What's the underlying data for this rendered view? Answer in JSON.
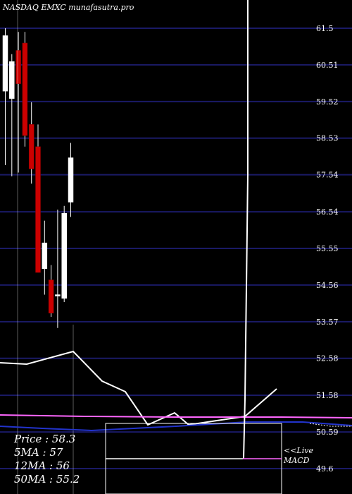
{
  "watermark": "NASDAQ EMXC munafasutra.pro",
  "stats": {
    "price": "Price   : 58.3",
    "ma5": "5MA : 57",
    "ma12": "12MA : 56",
    "ma50": "50MA : 55.2"
  },
  "macd_label": [
    "<<Live",
    "MACD"
  ],
  "chart_data": {
    "type": "candlestick",
    "yticks": [
      "61.5",
      "60.51",
      "59.52",
      "58.53",
      "57.54",
      "56.54",
      "55.55",
      "54.56",
      "53.57",
      "52.58",
      "51.58",
      "50.59",
      "49.6"
    ],
    "ylim": [
      49.6,
      61.5
    ],
    "candles": [
      {
        "open": 59.8,
        "high": 61.5,
        "low": 57.8,
        "close": 61.3
      },
      {
        "open": 59.6,
        "high": 60.8,
        "low": 57.5,
        "close": 60.6
      },
      {
        "open": 60.9,
        "high": 61.4,
        "low": 57.6,
        "close": 60.0
      },
      {
        "open": 61.1,
        "high": 61.4,
        "low": 58.3,
        "close": 58.6
      },
      {
        "open": 58.9,
        "high": 59.5,
        "low": 57.3,
        "close": 57.7
      },
      {
        "open": 58.3,
        "high": 58.9,
        "low": 54.9,
        "close": 54.9
      },
      {
        "open": 55.0,
        "high": 56.3,
        "low": 54.3,
        "close": 55.7
      },
      {
        "open": 54.7,
        "high": 55.1,
        "low": 53.7,
        "close": 53.8
      },
      {
        "open": 54.3,
        "high": 56.6,
        "low": 53.4,
        "close": 54.3
      },
      {
        "open": 54.2,
        "high": 56.7,
        "low": 54.1,
        "close": 56.5
      },
      {
        "open": 56.8,
        "high": 58.4,
        "low": 56.4,
        "close": 58.0
      }
    ],
    "ma_line_colors": {
      "ma5": "#ffffff",
      "ma12": "#ff66ff",
      "ma50": "#2233cc"
    },
    "grid_color": "#1a1a66",
    "up_color": "#ffffff",
    "down_color": "#cc0000"
  }
}
